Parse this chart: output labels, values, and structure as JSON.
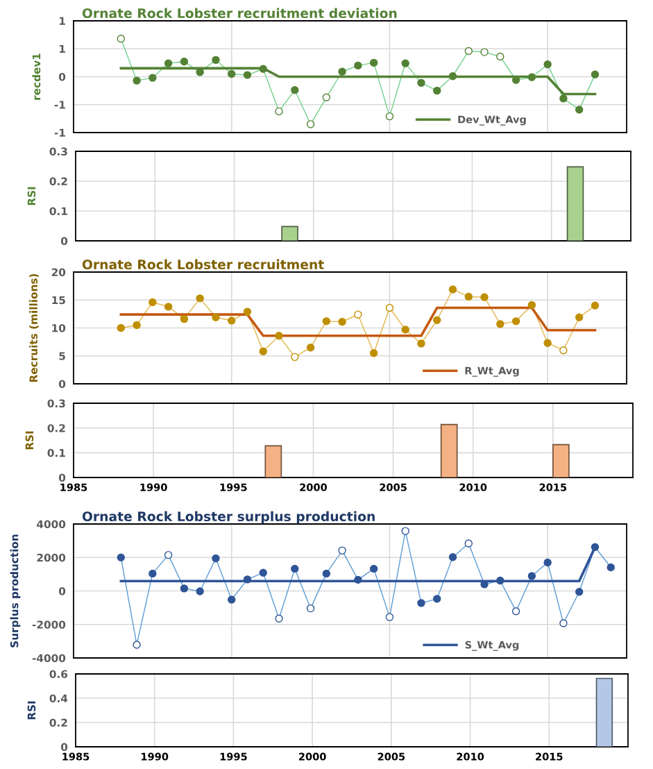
{
  "chart_data": [
    {
      "type": "line",
      "title": "Ornate Rock Lobster recruitment deviation",
      "ylabel": "recdev1",
      "xlim": [
        1985,
        2020
      ],
      "xticks": [
        1995,
        2005,
        2015
      ],
      "ylim": [
        -1,
        1
      ],
      "yticks": [
        {
          "value": -1,
          "label": "-1"
        },
        {
          "value": -0.5,
          "label": "-1"
        },
        0,
        {
          "value": 0.5,
          "label": "1"
        },
        {
          "value": 1,
          "label": "1"
        }
      ],
      "grid": true,
      "tick_labels": "y",
      "legend": "bottom",
      "x": [
        1988,
        1989,
        1990,
        1991,
        1992,
        1993,
        1994,
        1995,
        1996,
        1997,
        1998,
        1999,
        2000,
        2001,
        2002,
        2003,
        2004,
        2005,
        2006,
        2007,
        2008,
        2009,
        2010,
        2011,
        2012,
        2013,
        2014,
        2015,
        2016,
        2017,
        2018
      ],
      "series": [
        {
          "color": "#70d08a",
          "marker": "circle",
          "values": [
            0.68,
            -0.07,
            -0.02,
            0.24,
            0.27,
            0.08,
            0.3,
            0.05,
            0.03,
            0.14,
            -0.62,
            -0.24,
            -0.85,
            -0.37,
            0.09,
            0.2,
            0.25,
            -0.71,
            0.24,
            -0.11,
            -0.25,
            0.01,
            0.46,
            0.44,
            0.36,
            -0.06,
            -0.01,
            0.22,
            -0.39,
            -0.59,
            0.04
          ],
          "colors": [
            "#ffffff",
            "#548235",
            "#548235",
            "#548235",
            "#548235",
            "#548235",
            "#548235",
            "#548235",
            "#548235",
            "#548235",
            "#ffffff",
            "#548235",
            "#ffffff",
            "#ffffff",
            "#548235",
            "#548235",
            "#548235",
            "#ffffff",
            "#548235",
            "#548235",
            "#548235",
            "#548235",
            "#ffffff",
            "#ffffff",
            "#ffffff",
            "#548235",
            "#548235",
            "#548235",
            "#548235",
            "#548235",
            "#548235"
          ]
        },
        {
          "name": "Dev_Wt_Avg",
          "color": "#548235",
          "marker": "none",
          "values": [
            0.15,
            0.15,
            0.15,
            0.15,
            0.15,
            0.15,
            0.15,
            0.15,
            0.15,
            0.15,
            0,
            0,
            0,
            0,
            0,
            0,
            0,
            0,
            0,
            0,
            0,
            0,
            0,
            0,
            0,
            0,
            0,
            0,
            -0.31,
            -0.31,
            -0.31
          ]
        }
      ]
    },
    {
      "type": "bar",
      "ylabel": "RSI",
      "xlim": [
        1985,
        2020
      ],
      "xticks": [
        1990,
        1995,
        2000,
        2005,
        2010,
        2015
      ],
      "ylim": [
        0,
        0.3
      ],
      "yticks": [
        0,
        0.1,
        0.2,
        0.3
      ],
      "grid": true,
      "tick_labels": "y",
      "x": [
        1998.5,
        2016.5
      ],
      "values": [
        0.048,
        0.248
      ],
      "color": "#a9d18e"
    },
    {
      "type": "line",
      "title": "Ornate Rock Lobster recruitment",
      "ylabel": "Recruits (millions)",
      "xlim": [
        1985,
        2020
      ],
      "xticks": [
        1995,
        2005,
        2015
      ],
      "ylim": [
        0,
        20
      ],
      "yticks": [
        0,
        5,
        10,
        15,
        20
      ],
      "grid": true,
      "tick_labels": "y",
      "legend": "bottom",
      "x": [
        1988,
        1989,
        1990,
        1991,
        1992,
        1993,
        1994,
        1995,
        1996,
        1997,
        1998,
        1999,
        2000,
        2001,
        2002,
        2003,
        2004,
        2005,
        2006,
        2007,
        2008,
        2009,
        2010,
        2011,
        2012,
        2013,
        2014,
        2015,
        2016,
        2017,
        2018
      ],
      "series": [
        {
          "color": "#e2b54a",
          "marker": "circle",
          "values": [
            10.0,
            10.5,
            14.6,
            13.8,
            11.6,
            15.3,
            11.9,
            11.3,
            12.9,
            5.8,
            8.6,
            4.8,
            6.5,
            11.2,
            11.1,
            12.4,
            5.5,
            13.6,
            9.7,
            7.2,
            11.4,
            16.9,
            15.6,
            15.5,
            10.7,
            11.2,
            14.1,
            7.3,
            6.0,
            11.9,
            14.0
          ],
          "colors": [
            "#bf8f00",
            "#bf8f00",
            "#bf8f00",
            "#bf8f00",
            "#bf8f00",
            "#bf8f00",
            "#bf8f00",
            "#bf8f00",
            "#bf8f00",
            "#bf8f00",
            "#bf8f00",
            "#ffffff",
            "#bf8f00",
            "#bf8f00",
            "#bf8f00",
            "#ffffff",
            "#bf8f00",
            "#ffffff",
            "#bf8f00",
            "#bf8f00",
            "#bf8f00",
            "#bf8f00",
            "#bf8f00",
            "#bf8f00",
            "#bf8f00",
            "#bf8f00",
            "#bf8f00",
            "#bf8f00",
            "#ffffff",
            "#bf8f00",
            "#bf8f00"
          ]
        },
        {
          "name": "R_Wt_Avg",
          "color": "#c55a11",
          "marker": "none",
          "values": [
            12.4,
            12.4,
            12.4,
            12.4,
            12.4,
            12.4,
            12.4,
            12.4,
            12.4,
            8.6,
            8.6,
            8.6,
            8.6,
            8.6,
            8.6,
            8.6,
            8.6,
            8.6,
            8.6,
            8.6,
            13.6,
            13.6,
            13.6,
            13.6,
            13.6,
            13.6,
            13.6,
            9.6,
            9.6,
            9.6,
            9.6
          ]
        }
      ]
    },
    {
      "type": "bar",
      "ylabel": "RSI",
      "xlim": [
        1985,
        2020
      ],
      "xticks": [
        1985,
        1990,
        1995,
        2000,
        2005,
        2010,
        2015,
        {
          "value": 2020,
          "label": null
        }
      ],
      "ylim": [
        0,
        0.3
      ],
      "yticks": [
        0,
        0.1,
        0.2,
        0.3
      ],
      "grid": true,
      "x": [
        1997.5,
        2008.5,
        2015.5
      ],
      "values": [
        0.128,
        0.214,
        0.133
      ],
      "color": "#f4b183"
    },
    {
      "type": "line",
      "title": "Ornate Rock Lobster surplus production",
      "ylabel": "Surplus production",
      "xlim": [
        1985,
        2020
      ],
      "xticks": [
        1995,
        2005,
        2015
      ],
      "ylim": [
        -4000,
        4000
      ],
      "yticks": [
        -4000,
        -2000,
        0,
        2000,
        4000
      ],
      "grid": true,
      "tick_labels": "y",
      "legend": "bottom",
      "x": [
        1988,
        1989,
        1990,
        1991,
        1992,
        1993,
        1994,
        1995,
        1996,
        1997,
        1998,
        1999,
        2000,
        2001,
        2002,
        2003,
        2004,
        2005,
        2006,
        2007,
        2008,
        2009,
        2010,
        2011,
        2012,
        2013,
        2014,
        2015,
        2016,
        2017,
        2018,
        2019
      ],
      "series": [
        {
          "color": "#5b9bd5",
          "marker": "circle",
          "values": [
            2000,
            -3210,
            1040,
            2150,
            150,
            -20,
            1950,
            -520,
            690,
            1090,
            -1650,
            1330,
            -1040,
            1040,
            2420,
            670,
            1330,
            -1560,
            3580,
            -720,
            -470,
            2020,
            2840,
            400,
            620,
            -1210,
            890,
            1700,
            -1930,
            -50,
            2620,
            1410
          ],
          "colors": [
            "#2f5597",
            "#ffffff",
            "#2f5597",
            "#ffffff",
            "#2f5597",
            "#2f5597",
            "#2f5597",
            "#2f5597",
            "#2f5597",
            "#2f5597",
            "#ffffff",
            "#2f5597",
            "#ffffff",
            "#2f5597",
            "#ffffff",
            "#2f5597",
            "#2f5597",
            "#ffffff",
            "#ffffff",
            "#2f5597",
            "#2f5597",
            "#2f5597",
            "#ffffff",
            "#2f5597",
            "#2f5597",
            "#ffffff",
            "#2f5597",
            "#2f5597",
            "#ffffff",
            "#2f5597",
            "#2f5597",
            "#2f5597"
          ]
        },
        {
          "name": "S_Wt_Avg",
          "color": "#2f5597",
          "marker": "none",
          "values": [
            590,
            590,
            590,
            590,
            590,
            590,
            590,
            590,
            590,
            590,
            590,
            590,
            590,
            590,
            590,
            590,
            590,
            590,
            590,
            590,
            590,
            590,
            590,
            590,
            590,
            590,
            590,
            590,
            590,
            590,
            2620,
            null
          ]
        }
      ]
    },
    {
      "type": "bar",
      "ylabel": "RSI",
      "xlim": [
        1985,
        2020
      ],
      "xticks": [
        1985,
        1990,
        1995,
        2000,
        2005,
        2010,
        2015,
        {
          "value": 2020,
          "label": null
        }
      ],
      "ylim": [
        0,
        0.6
      ],
      "yticks": [
        0,
        0.2,
        0.4,
        0.6
      ],
      "grid": true,
      "x": [
        2018.5
      ],
      "values": [
        0.563
      ],
      "color": "#b4c7e7"
    }
  ]
}
